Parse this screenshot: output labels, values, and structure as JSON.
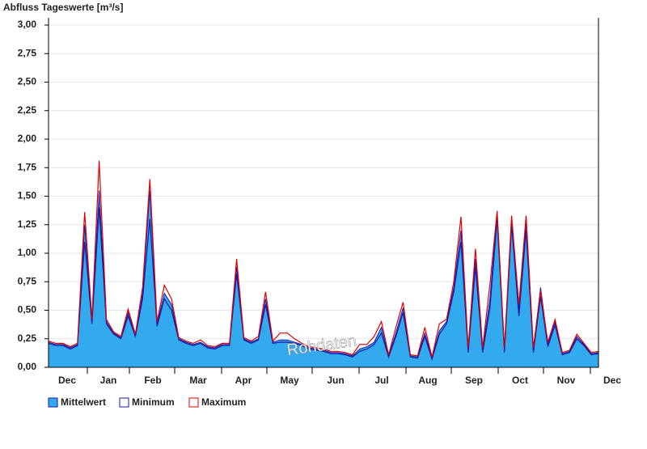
{
  "chart_data": {
    "type": "area",
    "title": "Abfluss Tageswerte [m³/s]",
    "watermark": "Rohdaten",
    "months": [
      "Dec",
      "Jan",
      "Feb",
      "Mar",
      "Apr",
      "May",
      "Jun",
      "Jul",
      "Aug",
      "Sep",
      "Oct",
      "Nov",
      "Dec"
    ],
    "ylim": [
      0,
      3
    ],
    "yticks": [
      {
        "value": 0,
        "label": "0,00"
      },
      {
        "value": 0.25,
        "label": "0,25"
      },
      {
        "value": 0.5,
        "label": "0,50"
      },
      {
        "value": 0.75,
        "label": "0,75"
      },
      {
        "value": 1,
        "label": "1,00"
      },
      {
        "value": 1.25,
        "label": "1,25"
      },
      {
        "value": 1.5,
        "label": "1,50"
      },
      {
        "value": 1.75,
        "label": "1,75"
      },
      {
        "value": 2,
        "label": "2,00"
      },
      {
        "value": 2.25,
        "label": "2,25"
      },
      {
        "value": 2.5,
        "label": "2,50"
      },
      {
        "value": 2.75,
        "label": "2,75"
      },
      {
        "value": 3,
        "label": "3,00"
      }
    ],
    "grid": true,
    "series": [
      {
        "name": "Mittelwert",
        "color": "#33aaee",
        "values": [
          0.22,
          0.2,
          0.2,
          0.17,
          0.2,
          1.25,
          0.4,
          1.55,
          0.4,
          0.3,
          0.26,
          0.48,
          0.28,
          0.65,
          1.55,
          0.38,
          0.65,
          0.55,
          0.25,
          0.22,
          0.2,
          0.22,
          0.18,
          0.17,
          0.2,
          0.2,
          0.88,
          0.25,
          0.22,
          0.25,
          0.6,
          0.22,
          0.24,
          0.24,
          0.22,
          0.2,
          0.17,
          0.16,
          0.15,
          0.13,
          0.13,
          0.12,
          0.1,
          0.16,
          0.18,
          0.22,
          0.35,
          0.1,
          0.3,
          0.52,
          0.1,
          0.09,
          0.3,
          0.08,
          0.32,
          0.4,
          0.7,
          1.2,
          0.15,
          0.95,
          0.15,
          0.6,
          1.35,
          0.15,
          1.3,
          0.5,
          1.28,
          0.15,
          0.7,
          0.2,
          0.4,
          0.12,
          0.14,
          0.27,
          0.2,
          0.12,
          0.13
        ]
      },
      {
        "name": "Minimum",
        "color": "#1a1aa6",
        "values": [
          0.21,
          0.19,
          0.19,
          0.16,
          0.19,
          1.1,
          0.38,
          1.4,
          0.38,
          0.29,
          0.25,
          0.45,
          0.27,
          0.6,
          1.3,
          0.36,
          0.6,
          0.5,
          0.24,
          0.21,
          0.19,
          0.21,
          0.17,
          0.16,
          0.19,
          0.19,
          0.82,
          0.24,
          0.21,
          0.24,
          0.55,
          0.21,
          0.22,
          0.22,
          0.21,
          0.19,
          0.16,
          0.15,
          0.14,
          0.12,
          0.12,
          0.11,
          0.09,
          0.14,
          0.16,
          0.2,
          0.3,
          0.09,
          0.27,
          0.48,
          0.09,
          0.08,
          0.27,
          0.07,
          0.29,
          0.38,
          0.66,
          1.1,
          0.13,
          0.88,
          0.13,
          0.52,
          1.3,
          0.13,
          1.25,
          0.45,
          1.2,
          0.13,
          0.62,
          0.18,
          0.37,
          0.11,
          0.13,
          0.25,
          0.19,
          0.11,
          0.12
        ]
      },
      {
        "name": "Maximum",
        "color": "#dd0000",
        "values": [
          0.23,
          0.21,
          0.21,
          0.18,
          0.21,
          1.36,
          0.42,
          1.81,
          0.42,
          0.31,
          0.27,
          0.51,
          0.29,
          0.7,
          1.65,
          0.4,
          0.72,
          0.6,
          0.26,
          0.23,
          0.21,
          0.24,
          0.19,
          0.18,
          0.21,
          0.21,
          0.95,
          0.26,
          0.23,
          0.27,
          0.66,
          0.23,
          0.3,
          0.3,
          0.25,
          0.21,
          0.18,
          0.17,
          0.16,
          0.14,
          0.14,
          0.13,
          0.11,
          0.2,
          0.2,
          0.27,
          0.4,
          0.11,
          0.35,
          0.57,
          0.11,
          0.1,
          0.35,
          0.09,
          0.38,
          0.42,
          0.75,
          1.32,
          0.17,
          1.04,
          0.17,
          0.73,
          1.37,
          0.17,
          1.33,
          0.55,
          1.33,
          0.17,
          0.67,
          0.22,
          0.42,
          0.13,
          0.15,
          0.29,
          0.21,
          0.13,
          0.14
        ]
      }
    ]
  }
}
